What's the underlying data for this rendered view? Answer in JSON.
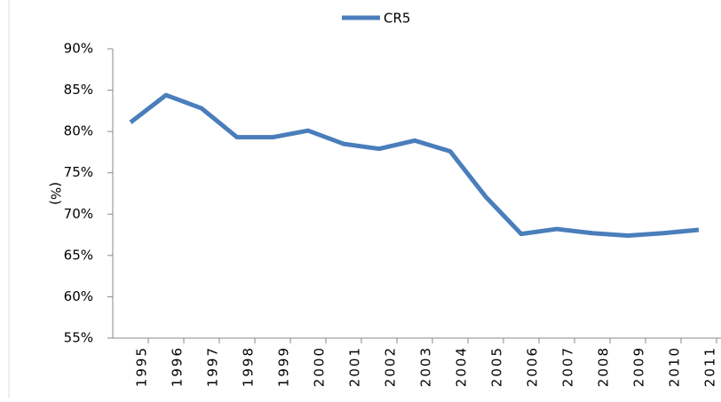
{
  "chart_data": {
    "type": "line",
    "y_label": "(%)",
    "categories": [
      "1995",
      "1996",
      "1997",
      "1998",
      "1999",
      "2000",
      "2001",
      "2002",
      "2003",
      "2004",
      "2005",
      "2006",
      "2007",
      "2008",
      "2009",
      "2010",
      "2011"
    ],
    "series": [
      {
        "name": "CR5",
        "color": "#4a7ebb",
        "values": [
          81.1,
          84.4,
          82.8,
          79.3,
          79.3,
          80.1,
          78.5,
          77.9,
          78.9,
          77.6,
          72.1,
          67.6,
          68.2,
          67.7,
          67.4,
          67.7,
          68.1
        ]
      }
    ],
    "ylim": [
      55,
      90
    ],
    "yticks": [
      {
        "value": 55,
        "label": "55%"
      },
      {
        "value": 60,
        "label": "60%"
      },
      {
        "value": 65,
        "label": "65%"
      },
      {
        "value": 70,
        "label": "70%"
      },
      {
        "value": 75,
        "label": "75%"
      },
      {
        "value": 80,
        "label": "80%"
      },
      {
        "value": 85,
        "label": "85%"
      },
      {
        "value": 90,
        "label": "90%"
      }
    ],
    "legend": "top"
  }
}
